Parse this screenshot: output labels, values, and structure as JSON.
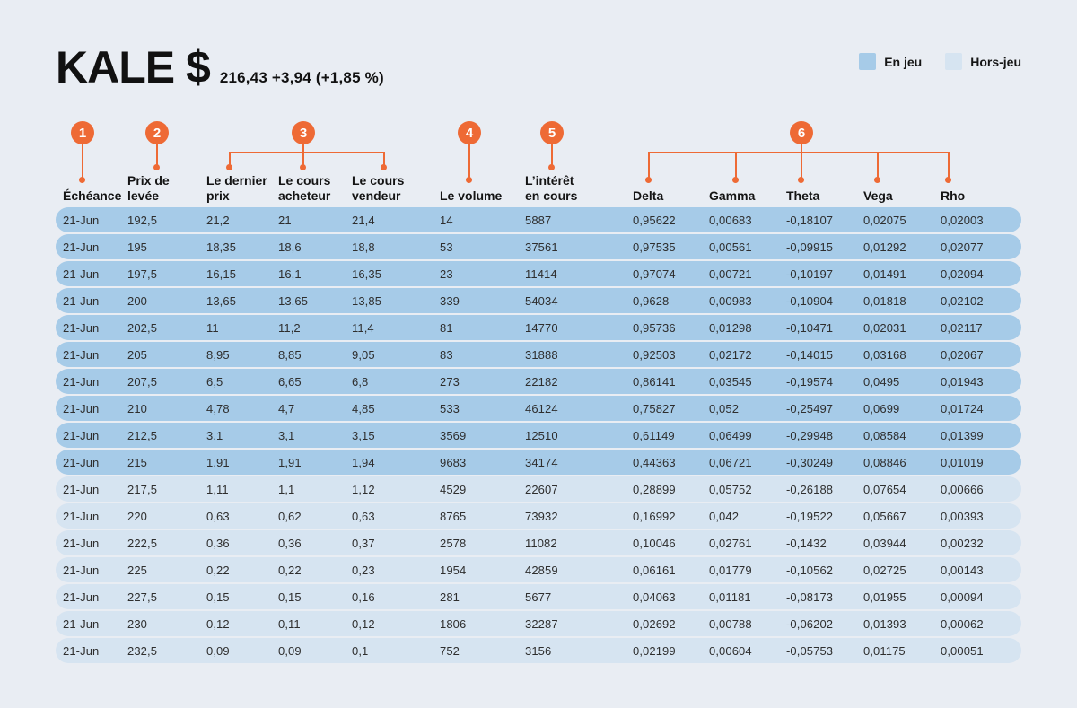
{
  "accent_color": "#ee6a35",
  "header": {
    "ticker": "KALE $",
    "price_line": "216,43 +3,94 (+1,85 %)"
  },
  "legend": {
    "in_play": {
      "label": "En jeu",
      "color": "#a6cbe8"
    },
    "out_play": {
      "label": "Hors-jeu",
      "color": "#d6e4f1"
    }
  },
  "callouts": [
    {
      "number": "1",
      "target": "Échéance"
    },
    {
      "number": "2",
      "target": "Prix de levée"
    },
    {
      "number": "3",
      "target": "Le dernier prix / Le cours acheteur / Le cours vendeur"
    },
    {
      "number": "4",
      "target": "Le volume"
    },
    {
      "number": "5",
      "target": "L’intérêt en cours"
    },
    {
      "number": "6",
      "target": "Delta / Gamma / Theta / Vega / Rho"
    }
  ],
  "table": {
    "column_headers": [
      "Échéance",
      "Prix de\nlevée",
      "Le dernier\nprix",
      "Le cours\nacheteur",
      "Le cours\nvendeur",
      "Le volume",
      "L’intérêt\nen cours",
      "Delta",
      "Gamma",
      "Theta",
      "Vega",
      "Rho"
    ]
  },
  "chart_data": {
    "type": "table",
    "title": "KALE $ 216,43 +3,94 (+1,85 %)",
    "legend": [
      "En jeu",
      "Hors-jeu"
    ],
    "columns": [
      "Échéance",
      "Prix de levée",
      "Le dernier prix",
      "Le cours acheteur",
      "Le cours vendeur",
      "Le volume",
      "L’intérêt en cours",
      "Delta",
      "Gamma",
      "Theta",
      "Vega",
      "Rho"
    ],
    "row_moneyness": [
      "in",
      "in",
      "in",
      "in",
      "in",
      "in",
      "in",
      "in",
      "in",
      "in",
      "out",
      "out",
      "out",
      "out",
      "out",
      "out",
      "out"
    ],
    "rows": [
      [
        "21-Jun",
        "192,5",
        "21,2",
        "21",
        "21,4",
        "14",
        "5887",
        "0,95622",
        "0,00683",
        "-0,18107",
        "0,02075",
        "0,02003"
      ],
      [
        "21-Jun",
        "195",
        "18,35",
        "18,6",
        "18,8",
        "53",
        "37561",
        "0,97535",
        "0,00561",
        "-0,09915",
        "0,01292",
        "0,02077"
      ],
      [
        "21-Jun",
        "197,5",
        "16,15",
        "16,1",
        "16,35",
        "23",
        "11414",
        "0,97074",
        "0,00721",
        "-0,10197",
        "0,01491",
        "0,02094"
      ],
      [
        "21-Jun",
        "200",
        "13,65",
        "13,65",
        "13,85",
        "339",
        "54034",
        "0,9628",
        "0,00983",
        "-0,10904",
        "0,01818",
        "0,02102"
      ],
      [
        "21-Jun",
        "202,5",
        "11",
        "11,2",
        "11,4",
        "81",
        "14770",
        "0,95736",
        "0,01298",
        "-0,10471",
        "0,02031",
        "0,02117"
      ],
      [
        "21-Jun",
        "205",
        "8,95",
        "8,85",
        "9,05",
        "83",
        "31888",
        "0,92503",
        "0,02172",
        "-0,14015",
        "0,03168",
        "0,02067"
      ],
      [
        "21-Jun",
        "207,5",
        "6,5",
        "6,65",
        "6,8",
        "273",
        "22182",
        "0,86141",
        "0,03545",
        "-0,19574",
        "0,0495",
        "0,01943"
      ],
      [
        "21-Jun",
        "210",
        "4,78",
        "4,7",
        "4,85",
        "533",
        "46124",
        "0,75827",
        "0,052",
        "-0,25497",
        "0,0699",
        "0,01724"
      ],
      [
        "21-Jun",
        "212,5",
        "3,1",
        "3,1",
        "3,15",
        "3569",
        "12510",
        "0,61149",
        "0,06499",
        "-0,29948",
        "0,08584",
        "0,01399"
      ],
      [
        "21-Jun",
        "215",
        "1,91",
        "1,91",
        "1,94",
        "9683",
        "34174",
        "0,44363",
        "0,06721",
        "-0,30249",
        "0,08846",
        "0,01019"
      ],
      [
        "21-Jun",
        "217,5",
        "1,11",
        "1,1",
        "1,12",
        "4529",
        "22607",
        "0,28899",
        "0,05752",
        "-0,26188",
        "0,07654",
        "0,00666"
      ],
      [
        "21-Jun",
        "220",
        "0,63",
        "0,62",
        "0,63",
        "8765",
        "73932",
        "0,16992",
        "0,042",
        "-0,19522",
        "0,05667",
        "0,00393"
      ],
      [
        "21-Jun",
        "222,5",
        "0,36",
        "0,36",
        "0,37",
        "2578",
        "11082",
        "0,10046",
        "0,02761",
        "-0,1432",
        "0,03944",
        "0,00232"
      ],
      [
        "21-Jun",
        "225",
        "0,22",
        "0,22",
        "0,23",
        "1954",
        "42859",
        "0,06161",
        "0,01779",
        "-0,10562",
        "0,02725",
        "0,00143"
      ],
      [
        "21-Jun",
        "227,5",
        "0,15",
        "0,15",
        "0,16",
        "281",
        "5677",
        "0,04063",
        "0,01181",
        "-0,08173",
        "0,01955",
        "0,00094"
      ],
      [
        "21-Jun",
        "230",
        "0,12",
        "0,11",
        "0,12",
        "1806",
        "32287",
        "0,02692",
        "0,00788",
        "-0,06202",
        "0,01393",
        "0,00062"
      ],
      [
        "21-Jun",
        "232,5",
        "0,09",
        "0,09",
        "0,1",
        "752",
        "3156",
        "0,02199",
        "0,00604",
        "-0,05753",
        "0,01175",
        "0,00051"
      ]
    ]
  }
}
